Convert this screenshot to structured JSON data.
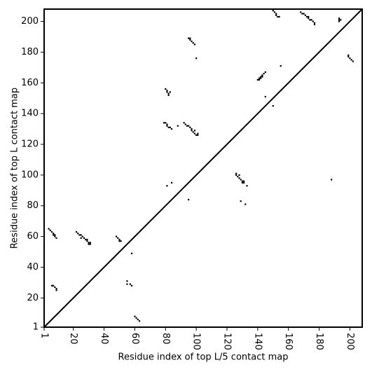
{
  "chart_data": {
    "type": "scatter",
    "xlabel": "Residue index of top L/5 contact map",
    "ylabel": "Residue index of top L contact map",
    "xlim": [
      1,
      208
    ],
    "ylim": [
      1,
      208
    ],
    "xticks": [
      1,
      20,
      40,
      60,
      80,
      100,
      120,
      140,
      160,
      180,
      200
    ],
    "yticks": [
      1,
      20,
      40,
      60,
      80,
      100,
      120,
      140,
      160,
      180,
      200
    ],
    "diagonal": true,
    "series": [
      {
        "color": "#000000",
        "x": [
          4,
          5,
          6,
          7,
          7,
          8,
          9,
          8,
          22,
          23,
          24,
          25,
          26,
          25,
          27,
          28,
          29,
          30,
          30,
          31,
          31,
          29,
          48,
          49,
          50,
          50,
          51,
          80,
          81,
          81,
          82,
          82,
          83,
          79,
          80,
          81,
          81,
          82,
          83,
          84,
          88,
          92,
          93,
          94,
          95,
          96,
          97,
          97,
          98,
          99,
          99,
          100,
          101,
          101,
          95,
          96,
          96,
          97,
          98,
          99,
          100,
          150,
          151,
          152,
          152,
          153,
          154,
          168,
          169,
          170,
          171,
          172,
          173,
          173,
          174,
          175,
          176,
          177,
          177,
          193,
          193,
          194,
          193,
          6,
          7,
          8,
          9,
          9,
          55,
          55,
          57,
          58,
          58,
          60,
          61,
          62,
          63,
          81,
          84,
          95,
          126,
          126,
          127,
          128,
          128,
          129,
          130,
          131,
          130,
          131,
          133,
          129,
          132,
          140,
          141,
          142,
          143,
          144,
          145,
          141,
          142,
          143,
          145,
          150,
          155,
          188,
          199,
          199,
          200,
          201,
          202
        ],
        "values": [
          65,
          64,
          63,
          62,
          61,
          60,
          59,
          61,
          63,
          62,
          61,
          61,
          60,
          59,
          59,
          58,
          57,
          56,
          55,
          55,
          56,
          58,
          60,
          59,
          58,
          57,
          57,
          156,
          155,
          154,
          153,
          152,
          154,
          134,
          134,
          133,
          132,
          131,
          131,
          130,
          132,
          134,
          133,
          132,
          132,
          131,
          130,
          129,
          128,
          129,
          127,
          126,
          126,
          127,
          189,
          189,
          188,
          187,
          186,
          185,
          176,
          207,
          206,
          205,
          204,
          203,
          203,
          206,
          205,
          205,
          204,
          203,
          203,
          202,
          201,
          201,
          200,
          199,
          198,
          201,
          202,
          201,
          200,
          28,
          28,
          27,
          26,
          25,
          31,
          29,
          29,
          28,
          49,
          8,
          7,
          6,
          5,
          93,
          95,
          84,
          101,
          100,
          99,
          98,
          100,
          97,
          96,
          96,
          95,
          95,
          93,
          83,
          81,
          162,
          163,
          164,
          165,
          166,
          167,
          162,
          163,
          164,
          151,
          145,
          171,
          97,
          178,
          177,
          176,
          175,
          174
        ]
      }
    ]
  }
}
